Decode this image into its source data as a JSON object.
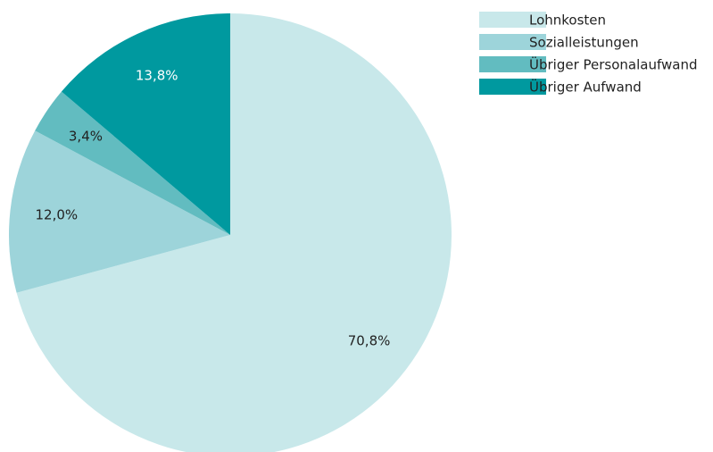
{
  "chart_data": {
    "type": "pie",
    "categories": [
      "Lohnkosten",
      "Sozialleistungen",
      "Übriger Personalaufwand",
      "Übriger Aufwand"
    ],
    "values": [
      70.8,
      12.0,
      3.4,
      13.8
    ],
    "value_labels": [
      "70,8%",
      "12,0%",
      "3,4%",
      "13,8%"
    ],
    "colors": [
      "#c8e8ea",
      "#9dd4da",
      "#62bcc0",
      "#00999f"
    ],
    "legend": "top-right"
  }
}
